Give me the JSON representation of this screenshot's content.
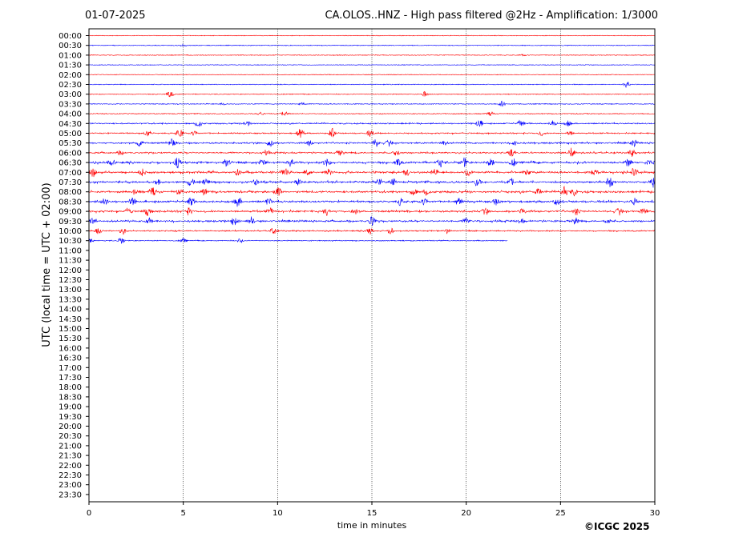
{
  "header": {
    "date": "01-07-2025",
    "title": "CA.OLOS..HNZ - High pass filtered @2Hz - Amplification: 1/3000"
  },
  "footer": {
    "copyright": "©ICGC 2025"
  },
  "colors": {
    "trace_a": "#ff0000",
    "trace_b": "#0000ff",
    "grid": "#000000"
  },
  "chart_data": {
    "type": "line",
    "title": "CA.OLOS..HNZ - High pass filtered @2Hz - Amplification: 1/3000",
    "xlabel": "time in minutes",
    "ylabel": "UTC (local time = UTC + 02:00)",
    "xlim": [
      0,
      30
    ],
    "xticks": [
      0,
      5,
      10,
      15,
      20,
      25,
      30
    ],
    "grid": "vertical dotted lines at 5-minute ticks",
    "row_labels": [
      "00:00",
      "00:30",
      "01:00",
      "01:30",
      "02:00",
      "02:30",
      "03:00",
      "03:30",
      "04:00",
      "04:30",
      "05:00",
      "05:30",
      "06:00",
      "06:30",
      "07:00",
      "07:30",
      "08:00",
      "08:30",
      "09:00",
      "09:30",
      "10:00",
      "10:30",
      "11:00",
      "11:30",
      "12:00",
      "12:30",
      "13:00",
      "13:30",
      "14:00",
      "14:30",
      "15:00",
      "15:30",
      "16:00",
      "16:30",
      "17:00",
      "17:30",
      "18:00",
      "18:30",
      "19:00",
      "19:30",
      "20:00",
      "20:30",
      "21:00",
      "21:30",
      "22:00",
      "22:30",
      "23:00",
      "23:30"
    ],
    "series": [
      {
        "row": "00:00",
        "color": "red",
        "end_minute": 30,
        "activity": 0.02,
        "events": []
      },
      {
        "row": "00:30",
        "color": "blue",
        "end_minute": 30,
        "activity": 0.05,
        "events": [
          [
            5.0,
            0.2
          ]
        ]
      },
      {
        "row": "01:00",
        "color": "red",
        "end_minute": 30,
        "activity": 0.05,
        "events": [
          [
            23.0,
            0.15
          ]
        ]
      },
      {
        "row": "01:30",
        "color": "blue",
        "end_minute": 30,
        "activity": 0.02,
        "events": []
      },
      {
        "row": "02:00",
        "color": "red",
        "end_minute": 30,
        "activity": 0.02,
        "events": []
      },
      {
        "row": "02:30",
        "color": "blue",
        "end_minute": 30,
        "activity": 0.05,
        "events": [
          [
            28.5,
            0.6
          ]
        ]
      },
      {
        "row": "03:00",
        "color": "red",
        "end_minute": 30,
        "activity": 0.06,
        "events": [
          [
            4.3,
            0.8
          ],
          [
            17.8,
            0.5
          ]
        ]
      },
      {
        "row": "03:30",
        "color": "blue",
        "end_minute": 30,
        "activity": 0.08,
        "events": [
          [
            7.1,
            0.2
          ],
          [
            11.3,
            0.2
          ],
          [
            21.9,
            0.6
          ]
        ]
      },
      {
        "row": "04:00",
        "color": "red",
        "end_minute": 30,
        "activity": 0.08,
        "events": [
          [
            9.1,
            0.3
          ],
          [
            10.4,
            0.7
          ],
          [
            21.3,
            0.4
          ]
        ]
      },
      {
        "row": "04:30",
        "color": "blue",
        "end_minute": 30,
        "activity": 0.2,
        "events": [
          [
            5.8,
            0.8
          ],
          [
            8.4,
            0.6
          ],
          [
            20.7,
            1.0
          ],
          [
            22.9,
            0.8
          ],
          [
            24.6,
            0.6
          ],
          [
            25.4,
            0.5
          ]
        ]
      },
      {
        "row": "05:00",
        "color": "red",
        "end_minute": 30,
        "activity": 0.2,
        "events": [
          [
            3.1,
            0.6
          ],
          [
            4.8,
            1.0
          ],
          [
            5.6,
            0.5
          ],
          [
            11.2,
            1.0
          ],
          [
            12.9,
            0.9
          ],
          [
            14.9,
            0.6
          ],
          [
            24.0,
            0.5
          ],
          [
            25.5,
            0.4
          ]
        ]
      },
      {
        "row": "05:30",
        "color": "blue",
        "end_minute": 30,
        "activity": 0.3,
        "events": [
          [
            2.7,
            0.7
          ],
          [
            4.4,
            0.8
          ],
          [
            9.6,
            0.7
          ],
          [
            11.7,
            0.6
          ],
          [
            15.2,
            0.8
          ],
          [
            15.9,
            0.6
          ],
          [
            18.8,
            0.5
          ],
          [
            22.6,
            0.4
          ],
          [
            28.9,
            0.6
          ]
        ]
      },
      {
        "row": "06:00",
        "color": "red",
        "end_minute": 30,
        "activity": 0.3,
        "events": [
          [
            1.7,
            0.5
          ],
          [
            9.4,
            0.4
          ],
          [
            13.3,
            0.6
          ],
          [
            16.3,
            0.6
          ],
          [
            22.4,
            0.6
          ],
          [
            25.6,
            0.9
          ],
          [
            28.8,
            0.6
          ]
        ]
      },
      {
        "row": "06:30",
        "color": "blue",
        "end_minute": 30,
        "activity": 0.4,
        "events": [
          [
            1.2,
            0.5
          ],
          [
            4.7,
            1.0
          ],
          [
            7.3,
            0.8
          ],
          [
            9.2,
            0.7
          ],
          [
            10.7,
            0.7
          ],
          [
            12.6,
            0.7
          ],
          [
            16.4,
            0.8
          ],
          [
            18.6,
            0.8
          ],
          [
            19.9,
            0.9
          ],
          [
            21.3,
            0.8
          ],
          [
            22.5,
            0.6
          ],
          [
            28.6,
            0.8
          ],
          [
            29.8,
            0.6
          ]
        ]
      },
      {
        "row": "07:00",
        "color": "red",
        "end_minute": 30,
        "activity": 0.4,
        "events": [
          [
            0.2,
            1.0
          ],
          [
            2.8,
            0.8
          ],
          [
            7.9,
            0.7
          ],
          [
            10.4,
            0.8
          ],
          [
            11.6,
            0.6
          ],
          [
            12.7,
            0.7
          ],
          [
            16.8,
            0.7
          ],
          [
            18.3,
            0.6
          ],
          [
            20.1,
            0.8
          ],
          [
            23.2,
            0.7
          ],
          [
            26.8,
            0.6
          ],
          [
            28.9,
            1.0
          ]
        ]
      },
      {
        "row": "07:30",
        "color": "blue",
        "end_minute": 30,
        "activity": 0.4,
        "events": [
          [
            3.6,
            0.6
          ],
          [
            5.4,
            0.9
          ],
          [
            6.2,
            0.6
          ],
          [
            8.8,
            0.6
          ],
          [
            11.1,
            0.6
          ],
          [
            15.4,
            0.6
          ],
          [
            16.1,
            0.7
          ],
          [
            20.6,
            0.8
          ],
          [
            22.4,
            0.7
          ],
          [
            27.6,
            1.0
          ],
          [
            29.9,
            0.9
          ]
        ]
      },
      {
        "row": "08:00",
        "color": "red",
        "end_minute": 30,
        "activity": 0.4,
        "events": [
          [
            2.5,
            0.6
          ],
          [
            3.4,
            0.8
          ],
          [
            4.8,
            0.6
          ],
          [
            6.1,
            0.6
          ],
          [
            10.0,
            0.9
          ],
          [
            17.2,
            0.7
          ],
          [
            17.9,
            0.7
          ],
          [
            23.8,
            0.7
          ],
          [
            25.2,
            0.9
          ],
          [
            25.7,
            0.7
          ]
        ]
      },
      {
        "row": "08:30",
        "color": "blue",
        "end_minute": 30,
        "activity": 0.4,
        "events": [
          [
            0.8,
            0.6
          ],
          [
            2.3,
            0.7
          ],
          [
            5.4,
            0.9
          ],
          [
            7.9,
            1.0
          ],
          [
            9.5,
            0.7
          ],
          [
            16.5,
            0.7
          ],
          [
            17.8,
            0.7
          ],
          [
            19.6,
            0.9
          ],
          [
            21.6,
            0.7
          ],
          [
            24.8,
            0.8
          ],
          [
            28.9,
            0.7
          ]
        ]
      },
      {
        "row": "09:00",
        "color": "red",
        "end_minute": 30,
        "activity": 0.4,
        "events": [
          [
            2.1,
            0.6
          ],
          [
            3.1,
            0.7
          ],
          [
            5.3,
            0.6
          ],
          [
            9.6,
            0.6
          ],
          [
            12.6,
            0.8
          ],
          [
            14.1,
            0.6
          ],
          [
            21.0,
            0.6
          ],
          [
            23.0,
            0.6
          ],
          [
            25.8,
            0.7
          ],
          [
            28.1,
            0.7
          ],
          [
            29.4,
            0.7
          ]
        ]
      },
      {
        "row": "09:30",
        "color": "blue",
        "end_minute": 30,
        "activity": 0.35,
        "events": [
          [
            0.2,
            0.8
          ],
          [
            3.2,
            0.7
          ],
          [
            7.7,
            0.8
          ],
          [
            8.6,
            0.7
          ],
          [
            15.0,
            0.9
          ],
          [
            20.0,
            0.6
          ],
          [
            22.9,
            0.6
          ],
          [
            25.8,
            0.6
          ],
          [
            27.5,
            0.5
          ]
        ]
      },
      {
        "row": "10:00",
        "color": "red",
        "end_minute": 30,
        "activity": 0.2,
        "events": [
          [
            0.5,
            0.6
          ],
          [
            1.8,
            0.7
          ],
          [
            9.8,
            0.8
          ],
          [
            14.9,
            0.7
          ],
          [
            16.0,
            0.6
          ],
          [
            19.0,
            0.5
          ]
        ]
      },
      {
        "row": "10:30",
        "color": "blue",
        "end_minute": 22.2,
        "activity": 0.1,
        "events": [
          [
            0.1,
            0.3
          ],
          [
            1.7,
            0.6
          ],
          [
            5.0,
            0.4
          ],
          [
            8.0,
            0.4
          ]
        ]
      }
    ]
  }
}
